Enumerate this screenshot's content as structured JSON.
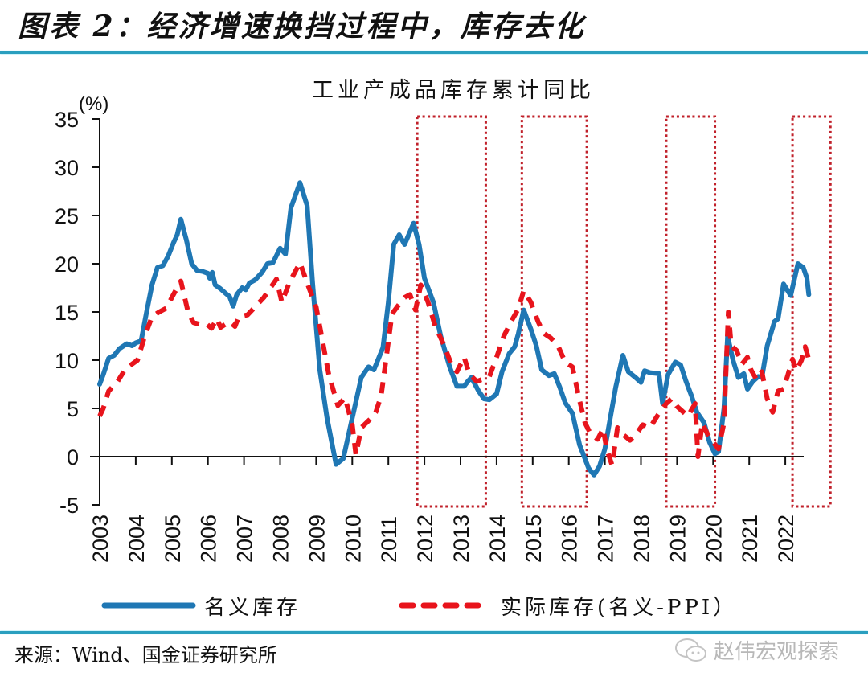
{
  "figure": {
    "title": "图表 2：经济增速换挡过程中，库存去化",
    "source": "来源：Wind、国金证券研究所",
    "watermark": "赵伟宏观探索",
    "watermark_icon": "wechat-icon"
  },
  "colors": {
    "nominal": "#1f77b4",
    "real": "#e8141c",
    "box": "#c0202a",
    "rule": "#2a9fbf",
    "axis": "#111111"
  },
  "chart_data": {
    "type": "line",
    "title": "工业产成品库存累计同比",
    "ylabel": "(%)",
    "xlabel": "",
    "ylim": [
      -5,
      35
    ],
    "yticks": [
      35,
      30,
      25,
      20,
      15,
      10,
      5,
      0,
      -5
    ],
    "xlim": [
      2003,
      2023.5
    ],
    "xtick_labels": [
      "2003",
      "2004",
      "2005",
      "2006",
      "2007",
      "2008",
      "2009",
      "2010",
      "2011",
      "2012",
      "2013",
      "2014",
      "2015",
      "2016",
      "2017",
      "2018",
      "2019",
      "2020",
      "2021",
      "2022"
    ],
    "grid": false,
    "legend_position": "bottom",
    "highlight_periods": [
      {
        "start": 2011.8,
        "end": 2013.7
      },
      {
        "start": 2014.7,
        "end": 2016.5
      },
      {
        "start": 2018.7,
        "end": 2020.05
      },
      {
        "start": 2022.2,
        "end": 2023.25
      }
    ],
    "series": [
      {
        "name": "名义库存",
        "style": "solid",
        "x": [
          2003.0,
          2003.1,
          2003.25,
          2003.4,
          2003.55,
          2003.75,
          2003.9,
          2004.0,
          2004.15,
          2004.3,
          2004.45,
          2004.6,
          2004.75,
          2004.9,
          2005.05,
          2005.15,
          2005.25,
          2005.4,
          2005.55,
          2005.7,
          2005.85,
          2006.0,
          2006.05,
          2006.12,
          2006.2,
          2006.35,
          2006.5,
          2006.6,
          2006.7,
          2006.8,
          2006.95,
          2007.05,
          2007.15,
          2007.3,
          2007.5,
          2007.65,
          2007.8,
          2008.0,
          2008.15,
          2008.3,
          2008.55,
          2008.75,
          2008.9,
          2009.1,
          2009.3,
          2009.55,
          2009.75,
          2010.0,
          2010.25,
          2010.45,
          2010.6,
          2010.85,
          2011.0,
          2011.15,
          2011.3,
          2011.45,
          2011.7,
          2011.85,
          2012.0,
          2012.25,
          2012.45,
          2012.7,
          2012.9,
          2013.1,
          2013.2,
          2013.3,
          2013.5,
          2013.65,
          2013.8,
          2014.0,
          2014.15,
          2014.35,
          2014.5,
          2014.6,
          2014.75,
          2014.95,
          2015.1,
          2015.25,
          2015.45,
          2015.6,
          2015.75,
          2015.9,
          2016.1,
          2016.3,
          2016.55,
          2016.7,
          2016.85,
          2017.0,
          2017.15,
          2017.3,
          2017.5,
          2017.65,
          2017.85,
          2018.0,
          2018.1,
          2018.25,
          2018.5,
          2018.6,
          2018.75,
          2018.95,
          2019.1,
          2019.25,
          2019.4,
          2019.55,
          2019.75,
          2019.9,
          2020.05,
          2020.15,
          2020.3,
          2020.4,
          2020.55,
          2020.7,
          2020.85,
          2020.95,
          2021.1,
          2021.25,
          2021.35,
          2021.5,
          2021.7,
          2021.8,
          2021.95,
          2022.15,
          2022.35,
          2022.5,
          2022.6,
          2022.65
        ],
        "values": [
          7.5,
          8.5,
          10.2,
          10.5,
          11.2,
          11.7,
          11.5,
          11.8,
          12.0,
          15.0,
          17.8,
          19.6,
          19.8,
          20.8,
          22.2,
          23.0,
          24.6,
          22.5,
          20.0,
          19.3,
          19.2,
          19.0,
          18.5,
          19.1,
          17.8,
          17.4,
          16.9,
          16.6,
          15.6,
          16.8,
          17.5,
          17.3,
          18.0,
          18.3,
          19.1,
          20.0,
          20.1,
          21.6,
          21.0,
          25.8,
          28.4,
          26.0,
          18.0,
          9.0,
          4.0,
          -0.8,
          -0.2,
          4.0,
          8.2,
          9.3,
          9.0,
          11.3,
          16.0,
          22.0,
          23.0,
          22.0,
          24.2,
          22.0,
          18.5,
          16.0,
          12.5,
          9.3,
          7.3,
          7.3,
          7.8,
          8.2,
          6.8,
          6.0,
          5.9,
          6.5,
          8.8,
          10.7,
          11.4,
          12.7,
          15.2,
          13.2,
          11.5,
          9.0,
          8.4,
          8.6,
          7.2,
          5.6,
          4.5,
          1.2,
          -1.2,
          -1.9,
          -1.0,
          0.8,
          4.0,
          7.2,
          10.5,
          8.8,
          8.2,
          7.7,
          8.9,
          8.7,
          8.6,
          5.5,
          8.5,
          9.8,
          9.5,
          7.8,
          6.3,
          4.6,
          3.5,
          1.5,
          0.3,
          0.5,
          5.0,
          12.5,
          10.0,
          8.2,
          8.6,
          7.0,
          7.8,
          8.3,
          8.2,
          11.5,
          14.0,
          14.3,
          17.9,
          16.7,
          20.0,
          19.6,
          18.5,
          16.8
        ]
      },
      {
        "name": "实际库存(名义-PPI）",
        "style": "dashed",
        "x": [
          2003.0,
          2003.1,
          2003.25,
          2003.5,
          2003.7,
          2003.9,
          2004.05,
          2004.25,
          2004.45,
          2004.65,
          2004.85,
          2005.0,
          2005.25,
          2005.45,
          2005.6,
          2005.8,
          2005.95,
          2006.1,
          2006.25,
          2006.35,
          2006.6,
          2006.75,
          2006.85,
          2007.1,
          2007.3,
          2007.55,
          2007.75,
          2007.9,
          2008.05,
          2008.25,
          2008.55,
          2008.8,
          2009.0,
          2009.2,
          2009.35,
          2009.6,
          2009.8,
          2010.0,
          2010.1,
          2010.25,
          2010.5,
          2010.65,
          2010.8,
          2010.95,
          2011.1,
          2011.3,
          2011.45,
          2011.6,
          2011.75,
          2011.9,
          2012.1,
          2012.3,
          2012.55,
          2012.75,
          2012.9,
          2013.1,
          2013.25,
          2013.45,
          2013.6,
          2013.8,
          2014.0,
          2014.2,
          2014.4,
          2014.6,
          2014.75,
          2014.95,
          2015.15,
          2015.3,
          2015.5,
          2015.7,
          2015.9,
          2016.1,
          2016.3,
          2016.45,
          2016.6,
          2016.8,
          2016.95,
          2017.05,
          2017.2,
          2017.35,
          2017.5,
          2017.7,
          2017.9,
          2018.05,
          2018.25,
          2018.45,
          2018.6,
          2018.7,
          2018.85,
          2019.0,
          2019.15,
          2019.3,
          2019.5,
          2019.58,
          2019.7,
          2019.85,
          2020.0,
          2020.15,
          2020.3,
          2020.42,
          2020.5,
          2020.65,
          2020.8,
          2020.95,
          2021.05,
          2021.2,
          2021.35,
          2021.5,
          2021.65,
          2021.8,
          2021.95,
          2022.05,
          2022.2,
          2022.3,
          2022.45,
          2022.55,
          2022.62,
          2022.68
        ],
        "values": [
          4.2,
          5.0,
          6.8,
          7.8,
          9.0,
          9.6,
          10.0,
          12.5,
          14.5,
          15.0,
          15.4,
          16.5,
          18.2,
          15.0,
          13.9,
          13.7,
          13.8,
          13.3,
          14.3,
          13.4,
          14.0,
          13.5,
          14.5,
          14.7,
          15.5,
          16.5,
          17.6,
          18.4,
          16.0,
          18.0,
          20.1,
          17.5,
          15.5,
          11.5,
          8.5,
          5.3,
          6.1,
          3.3,
          0.2,
          3.0,
          3.9,
          4.6,
          6.3,
          10.5,
          14.8,
          15.8,
          16.5,
          16.8,
          15.2,
          17.8,
          16.0,
          13.5,
          11.5,
          9.5,
          8.8,
          10.3,
          8.5,
          7.8,
          8.0,
          8.3,
          10.3,
          12.5,
          14.0,
          15.3,
          17.2,
          16.0,
          14.0,
          12.8,
          12.3,
          11.5,
          9.8,
          9.3,
          5.8,
          3.5,
          2.4,
          1.8,
          2.9,
          0.8,
          -0.9,
          3.0,
          2.3,
          1.7,
          2.5,
          3.3,
          3.0,
          4.2,
          5.0,
          5.5,
          6.0,
          5.2,
          4.7,
          4.2,
          5.5,
          0.0,
          3.5,
          2.3,
          1.5,
          0.8,
          3.5,
          15.0,
          11.5,
          11.0,
          9.6,
          10.3,
          9.0,
          8.0,
          8.8,
          6.0,
          4.6,
          6.8,
          7.0,
          8.2,
          10.1,
          8.9,
          10.0,
          11.4,
          10.5,
          9.5
        ]
      }
    ]
  }
}
